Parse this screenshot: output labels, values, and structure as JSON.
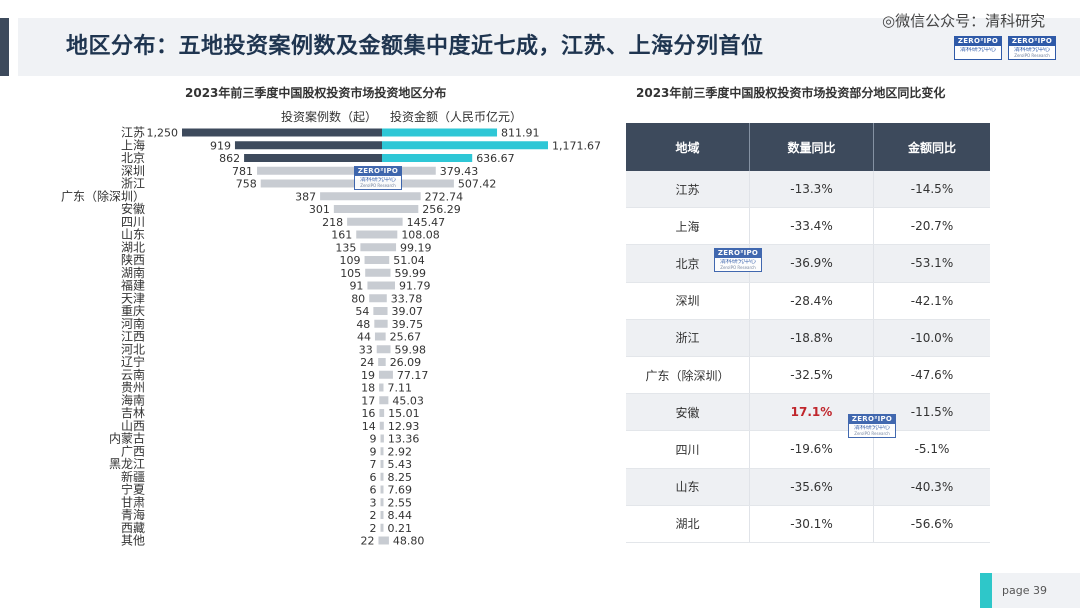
{
  "page": {
    "title": "地区分布：五地投资案例数及金额集中度近七成，江苏、上海分列首位",
    "watermark": "◎微信公众号：清科研究",
    "page_label": "page  39"
  },
  "logo": {
    "top": "ZERO²IPO",
    "bottom": "清科研究中心",
    "sub": "ZeroIPO Research"
  },
  "colors": {
    "count_bar_dark": "#3d4a5c",
    "count_bar_light": "#c8ccd2",
    "amount_bar_cyan": "#2ec7d6",
    "amount_bar_light": "#c8ccd2",
    "highlight_red": "#c0262c",
    "table_header": "#3d4a5c"
  },
  "chart_data": [
    {
      "type": "bar",
      "orientation": "horizontal-diverging",
      "title": "2023年前三季度中国股权投资市场投资地区分布",
      "legend": [
        "投资案例数（起）",
        "投资金额（人民币亿元）"
      ],
      "categories": [
        "江苏",
        "上海",
        "北京",
        "深圳",
        "浙江",
        "广东（除深圳）",
        "安徽",
        "四川",
        "山东",
        "湖北",
        "陕西",
        "湖南",
        "福建",
        "天津",
        "重庆",
        "河南",
        "江西",
        "河北",
        "辽宁",
        "云南",
        "贵州",
        "海南",
        "吉林",
        "山西",
        "内蒙古",
        "广西",
        "黑龙江",
        "新疆",
        "宁夏",
        "甘肃",
        "青海",
        "西藏",
        "其他"
      ],
      "series": [
        {
          "name": "投资案例数（起）",
          "values": [
            1250,
            919,
            862,
            781,
            758,
            387,
            301,
            218,
            161,
            135,
            109,
            105,
            91,
            80,
            54,
            48,
            44,
            33,
            24,
            19,
            18,
            17,
            16,
            14,
            9,
            9,
            7,
            6,
            6,
            3,
            2,
            2,
            22
          ],
          "labels": [
            "1,250",
            "919",
            "862",
            "781",
            "758",
            "387",
            "301",
            "218",
            "161",
            "135",
            "109",
            "105",
            "91",
            "80",
            "54",
            "48",
            "44",
            "33",
            "24",
            "19",
            "18",
            "17",
            "16",
            "14",
            "9",
            "9",
            "7",
            "6",
            "6",
            "3",
            "2",
            "2",
            "22"
          ]
        },
        {
          "name": "投资金额（人民币亿元）",
          "values": [
            811.91,
            1171.67,
            636.67,
            379.43,
            507.42,
            272.74,
            256.29,
            145.47,
            108.08,
            99.19,
            51.04,
            59.99,
            91.79,
            33.78,
            39.07,
            39.75,
            25.67,
            59.98,
            26.09,
            77.17,
            7.11,
            45.03,
            15.01,
            12.93,
            13.36,
            2.92,
            5.43,
            8.25,
            7.69,
            2.55,
            8.44,
            0.21,
            48.8
          ],
          "labels": [
            "811.91",
            "1,171.67",
            "636.67",
            "379.43",
            "507.42",
            "272.74",
            "256.29",
            "145.47",
            "108.08",
            "99.19",
            "51.04",
            "59.99",
            "91.79",
            "33.78",
            "39.07",
            "39.75",
            "25.67",
            "59.98",
            "26.09",
            "77.17",
            "7.11",
            "45.03",
            "15.01",
            "12.93",
            "13.36",
            "2.92",
            "5.43",
            "8.25",
            "7.69",
            "2.55",
            "8.44",
            "0.21",
            "48.80"
          ]
        }
      ],
      "highlighted_top": 3,
      "xlim_count": [
        0,
        1250
      ],
      "xlim_amount": [
        0,
        1171.67
      ]
    },
    {
      "type": "table",
      "title": "2023年前三季度中国股权投资市场投资部分地区同比变化",
      "columns": [
        "地域",
        "数量同比",
        "金额同比"
      ],
      "rows": [
        [
          "江苏",
          "-13.3%",
          "-14.5%"
        ],
        [
          "上海",
          "-33.4%",
          "-20.7%"
        ],
        [
          "北京",
          "-36.9%",
          "-53.1%"
        ],
        [
          "深圳",
          "-28.4%",
          "-42.1%"
        ],
        [
          "浙江",
          "-18.8%",
          "-10.0%"
        ],
        [
          "广东（除深圳）",
          "-32.5%",
          "-47.6%"
        ],
        [
          "安徽",
          "17.1%",
          "-11.5%"
        ],
        [
          "四川",
          "-19.6%",
          "-5.1%"
        ],
        [
          "山东",
          "-35.6%",
          "-40.3%"
        ],
        [
          "湖北",
          "-30.1%",
          "-56.6%"
        ]
      ],
      "highlight_cell": {
        "row": 6,
        "col": 1
      }
    }
  ]
}
